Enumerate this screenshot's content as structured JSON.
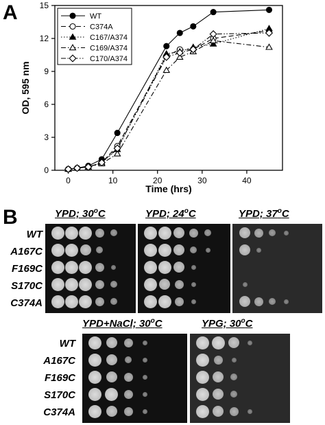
{
  "panel_a": {
    "letter": "A",
    "chart_data": {
      "type": "line",
      "xlabel": "Time (hrs)",
      "ylabel": "OD, 595 nm",
      "xlim": [
        -3,
        48
      ],
      "ylim": [
        0,
        15
      ],
      "xticks": [
        0,
        10,
        20,
        30,
        40
      ],
      "yticks": [
        0,
        3,
        6,
        9,
        12,
        15
      ],
      "legend_position": "top-left",
      "grid": false,
      "series": [
        {
          "name": "WT",
          "marker": "filled-circle",
          "dash": "solid",
          "x": [
            0,
            2,
            4.5,
            7.5,
            11,
            22,
            25,
            28,
            32.5,
            45
          ],
          "y": [
            0.1,
            0.2,
            0.4,
            1.0,
            3.4,
            11.3,
            12.5,
            13.1,
            14.4,
            14.6
          ]
        },
        {
          "name": "C374A",
          "marker": "open-circle",
          "dash": "long-dash",
          "x": [
            0,
            2,
            4.5,
            7.5,
            11,
            22,
            25,
            28,
            32.5,
            45
          ],
          "y": [
            0.1,
            0.2,
            0.3,
            0.7,
            2.2,
            10.4,
            11.0,
            11.0,
            12.0,
            12.7
          ]
        },
        {
          "name": "C167/A374",
          "marker": "filled-triangle",
          "dash": "dotted",
          "x": [
            0,
            2,
            4.5,
            7.5,
            11,
            22,
            25,
            28,
            32.5,
            45
          ],
          "y": [
            0.1,
            0.2,
            0.3,
            0.7,
            1.9,
            10.6,
            10.8,
            11.2,
            11.5,
            12.9
          ]
        },
        {
          "name": "C169/A374",
          "marker": "open-triangle",
          "dash": "dash-dot",
          "x": [
            0,
            2,
            4.5,
            7.5,
            11,
            22,
            25,
            28,
            32.5,
            45
          ],
          "y": [
            0.1,
            0.2,
            0.3,
            0.6,
            1.5,
            9.1,
            10.3,
            10.8,
            11.8,
            11.2
          ]
        },
        {
          "name": "C170/A374",
          "marker": "open-diamond",
          "dash": "dash-dot-dot",
          "x": [
            0,
            2,
            4.5,
            7.5,
            11,
            22,
            25,
            28,
            32.5,
            45
          ],
          "y": [
            0.1,
            0.2,
            0.3,
            0.7,
            2.0,
            10.3,
            10.7,
            11.0,
            12.4,
            12.5
          ]
        }
      ]
    }
  },
  "panel_b": {
    "letter": "B",
    "top_strains": [
      "WT",
      "A167C",
      "F169C",
      "S170C",
      "C374A"
    ],
    "bottom_strains": [
      "WT",
      "A167C",
      "F169C",
      "S170C",
      "C374A"
    ],
    "plates": [
      {
        "title_main": "YPD; 30",
        "title_sup": "o",
        "title_end": "C",
        "growth": [
          [
            5,
            5,
            5,
            3,
            2
          ],
          [
            5,
            5,
            4,
            2,
            0
          ],
          [
            5,
            5,
            5,
            3,
            1
          ],
          [
            5,
            5,
            5,
            3,
            2
          ],
          [
            5,
            5,
            5,
            3,
            2
          ]
        ]
      },
      {
        "title_main": "YPD; 24",
        "title_sup": "o",
        "title_end": "C",
        "growth": [
          [
            5,
            5,
            4,
            3,
            2
          ],
          [
            5,
            5,
            4,
            2,
            1
          ],
          [
            5,
            5,
            4,
            1,
            0
          ],
          [
            5,
            4,
            3,
            1,
            0
          ],
          [
            5,
            5,
            3,
            1,
            0
          ]
        ]
      },
      {
        "title_main": "YPD; 37",
        "title_sup": "o",
        "title_end": "C",
        "growth": [
          [
            4,
            3,
            2,
            1,
            0
          ],
          [
            4,
            1,
            0,
            0,
            0
          ],
          [
            0,
            0,
            0,
            0,
            0
          ],
          [
            1,
            0,
            0,
            0,
            0
          ],
          [
            4,
            3,
            2,
            1,
            0
          ]
        ]
      },
      {
        "title_main": "YPD+NaCl; 30",
        "title_sup": "o",
        "title_end": "C",
        "growth": [
          [
            5,
            4,
            3,
            1,
            0
          ],
          [
            5,
            4,
            2,
            1,
            0
          ],
          [
            5,
            4,
            3,
            1,
            0
          ],
          [
            5,
            5,
            3,
            1,
            0
          ],
          [
            5,
            4,
            3,
            1,
            0
          ]
        ]
      },
      {
        "title_main": "YPG; 30",
        "title_sup": "o",
        "title_end": "C",
        "growth": [
          [
            5,
            5,
            4,
            1,
            0
          ],
          [
            5,
            3,
            1,
            0,
            0
          ],
          [
            5,
            4,
            2,
            0,
            0
          ],
          [
            5,
            4,
            2,
            0,
            0
          ],
          [
            5,
            4,
            3,
            1,
            0
          ]
        ]
      }
    ]
  }
}
